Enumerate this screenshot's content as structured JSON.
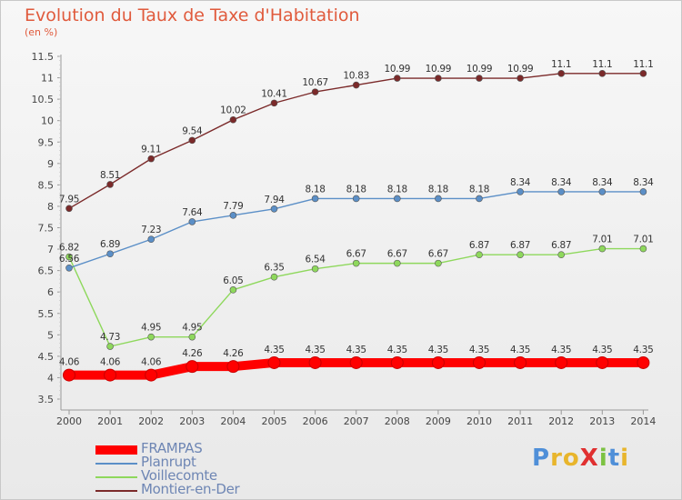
{
  "chart_data": {
    "type": "line",
    "title": "Evolution du Taux de Taxe d'Habitation",
    "unit_label": "(en %)",
    "categories": [
      "2000",
      "2001",
      "2002",
      "2003",
      "2004",
      "2005",
      "2006",
      "2007",
      "2008",
      "2009",
      "2010",
      "2011",
      "2012",
      "2013",
      "2014"
    ],
    "ylim": [
      3.5,
      11.5
    ],
    "yticks": [
      "3.5",
      "4",
      "4.5",
      "5",
      "5.5",
      "6",
      "6.5",
      "7",
      "7.5",
      "8",
      "8.5",
      "9",
      "9.5",
      "10",
      "10.5",
      "11",
      "11.5"
    ],
    "grid": false,
    "legend_position": "bottom-left",
    "series": [
      {
        "name": "FRAMPAS",
        "color": "#ff0000",
        "values": [
          4.06,
          4.06,
          4.06,
          4.26,
          4.26,
          4.35,
          4.35,
          4.35,
          4.35,
          4.35,
          4.35,
          4.35,
          4.35,
          4.35,
          4.35
        ],
        "labels": [
          "4.06",
          "4.06",
          "4.06",
          "4.26",
          "4.26",
          "4.35",
          "4.35",
          "4.35",
          "4.35",
          "4.35",
          "4.35",
          "4.35",
          "4.35",
          "4.35",
          "4.35"
        ]
      },
      {
        "name": "Planrupt",
        "color": "#5b8fc7",
        "values": [
          6.56,
          6.89,
          7.23,
          7.64,
          7.79,
          7.94,
          8.18,
          8.18,
          8.18,
          8.18,
          8.18,
          8.34,
          8.34,
          8.34,
          8.34
        ],
        "labels": [
          "6.56",
          "6.89",
          "7.23",
          "7.64",
          "7.79",
          "7.94",
          "8.18",
          "8.18",
          "8.18",
          "8.18",
          "8.18",
          "8.34",
          "8.34",
          "8.34",
          "8.34"
        ]
      },
      {
        "name": "Voillecomte",
        "color": "#8ed85c",
        "values": [
          6.82,
          4.73,
          4.95,
          4.95,
          6.05,
          6.35,
          6.54,
          6.67,
          6.67,
          6.67,
          6.87,
          6.87,
          6.87,
          7.01,
          7.01
        ],
        "labels": [
          "6.82",
          "4.73",
          "4.95",
          "4.95",
          "6.05",
          "6.35",
          "6.54",
          "6.67",
          "6.67",
          "6.67",
          "6.87",
          "6.87",
          "6.87",
          "7.01",
          "7.01"
        ]
      },
      {
        "name": "Montier-en-Der",
        "color": "#7b2a2a",
        "values": [
          7.95,
          8.51,
          9.11,
          9.54,
          10.02,
          10.41,
          10.67,
          10.83,
          10.99,
          10.99,
          10.99,
          10.99,
          11.1,
          11.1,
          11.1
        ],
        "labels": [
          "7.95",
          "8.51",
          "9.11",
          "9.54",
          "10.02",
          "10.41",
          "10.67",
          "10.83",
          "10.99",
          "10.99",
          "10.99",
          "10.99",
          "11.1",
          "11.1",
          "11.1"
        ]
      }
    ]
  },
  "logo": {
    "text": "ProXiti",
    "colors": [
      "#4f8fd8",
      "#e8b52c",
      "#e8b52c",
      "#e03030",
      "#7cc242",
      "#4f8fd8",
      "#e8b52c"
    ]
  }
}
